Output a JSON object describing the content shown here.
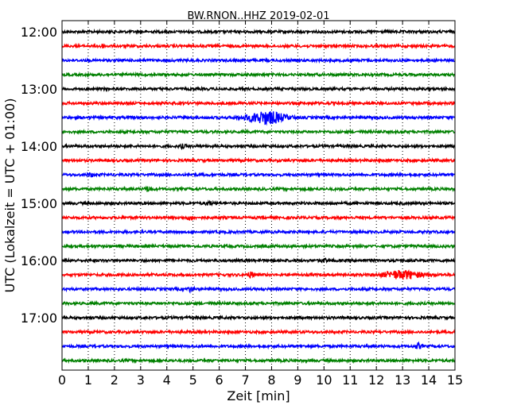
{
  "chart_data": {
    "type": "line",
    "title": "BW.RNON..HHZ 2019-02-01",
    "xlabel": "Zeit  [min]",
    "ylabel": "UTC (Lokalzeit = UTC + 01:00)",
    "xlim": [
      0,
      15
    ],
    "x_ticks": [
      "0",
      "1",
      "2",
      "3",
      "4",
      "5",
      "6",
      "7",
      "8",
      "9",
      "10",
      "11",
      "12",
      "13",
      "14",
      "15"
    ],
    "y_tick_labels": [
      "12:00",
      "13:00",
      "14:00",
      "15:00",
      "16:00",
      "17:00"
    ],
    "trace_interval_min": 15,
    "grid": "vertical dotted",
    "trace_colors": [
      "#000000",
      "#ff0000",
      "#0000ff",
      "#008000"
    ],
    "traces": [
      {
        "start": "12:00",
        "events": []
      },
      {
        "start": "12:15",
        "events": [
          {
            "t": 1.5,
            "amp": 0.6
          }
        ]
      },
      {
        "start": "12:30",
        "events": []
      },
      {
        "start": "12:45",
        "events": []
      },
      {
        "start": "13:00",
        "events": []
      },
      {
        "start": "13:15",
        "events": []
      },
      {
        "start": "13:30",
        "events": [
          {
            "t": 7.8,
            "amp": 2.2
          }
        ]
      },
      {
        "start": "13:45",
        "events": []
      },
      {
        "start": "14:00",
        "events": [
          {
            "t": 4.6,
            "amp": 0.5
          }
        ]
      },
      {
        "start": "14:15",
        "events": []
      },
      {
        "start": "14:30",
        "events": [
          {
            "t": 1.1,
            "amp": 0.6
          }
        ]
      },
      {
        "start": "14:45",
        "events": [
          {
            "t": 3.3,
            "amp": 0.8
          }
        ]
      },
      {
        "start": "15:00",
        "events": [
          {
            "t": 5.6,
            "amp": 0.6
          }
        ]
      },
      {
        "start": "15:15",
        "events": [
          {
            "t": 4.9,
            "amp": 0.6
          }
        ]
      },
      {
        "start": "15:30",
        "events": []
      },
      {
        "start": "15:45",
        "events": []
      },
      {
        "start": "16:00",
        "events": [
          {
            "t": 10.0,
            "amp": 0.5
          }
        ]
      },
      {
        "start": "16:15",
        "events": [
          {
            "t": 7.2,
            "amp": 0.9
          },
          {
            "t": 13.0,
            "amp": 1.4
          }
        ]
      },
      {
        "start": "16:30",
        "events": [
          {
            "t": 4.9,
            "amp": 0.7
          }
        ]
      },
      {
        "start": "16:45",
        "events": []
      },
      {
        "start": "17:00",
        "events": []
      },
      {
        "start": "17:15",
        "events": []
      },
      {
        "start": "17:30",
        "events": [
          {
            "t": 13.6,
            "amp": 0.9
          }
        ]
      },
      {
        "start": "17:45",
        "events": []
      }
    ]
  }
}
